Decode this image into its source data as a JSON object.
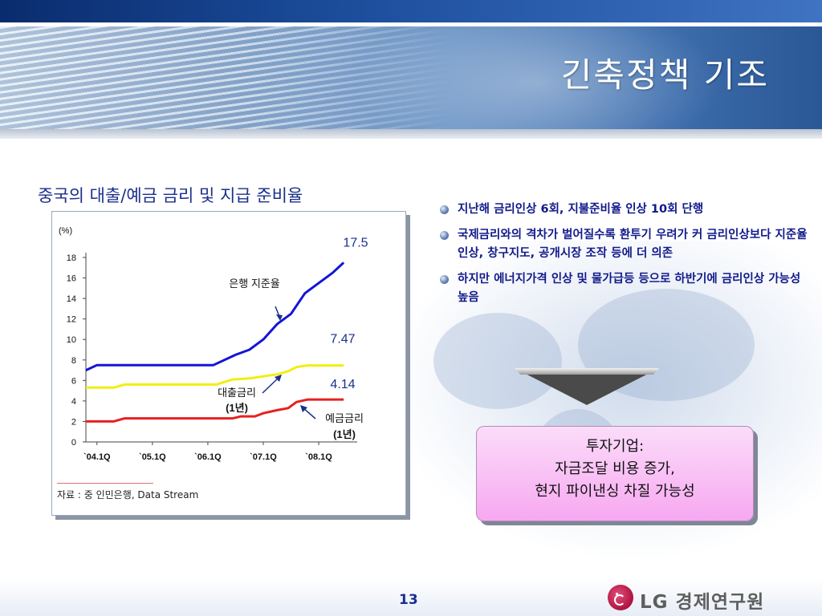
{
  "slide": {
    "title": "긴축정책 기조",
    "page_number": "13"
  },
  "chart_heading": "중국의 대출/예금 금리 및 지급 준비율",
  "chart_data": {
    "type": "line",
    "y_unit": "(%)",
    "ylim": [
      0,
      18
    ],
    "y_ticks": [
      0,
      2,
      4,
      6,
      8,
      10,
      12,
      14,
      16,
      18
    ],
    "x_tick_labels": [
      "`04.1Q",
      "`05.1Q",
      "`06.1Q",
      "`07.1Q",
      "`08.1Q"
    ],
    "x_tick_positions": [
      2004.0,
      2005.0,
      2006.0,
      2007.0,
      2008.0
    ],
    "xlim": [
      2003.8,
      2008.55
    ],
    "series": [
      {
        "key": "reserve",
        "color": "#1414d8",
        "x": [
          2003.8,
          2004.0,
          2004.3,
          2005.0,
          2005.5,
          2006.0,
          2006.1,
          2006.5,
          2006.75,
          2007.0,
          2007.25,
          2007.5,
          2007.75,
          2008.0,
          2008.25,
          2008.45
        ],
        "y": [
          7.0,
          7.5,
          7.5,
          7.5,
          7.5,
          7.5,
          7.5,
          8.5,
          9.0,
          10.0,
          11.5,
          12.5,
          14.5,
          15.5,
          16.5,
          17.5
        ]
      },
      {
        "key": "lending",
        "color": "#f2ee10",
        "x": [
          2003.8,
          2004.3,
          2004.5,
          2005.0,
          2006.0,
          2006.15,
          2006.45,
          2006.75,
          2007.0,
          2007.25,
          2007.45,
          2007.6,
          2007.8,
          2008.0,
          2008.45
        ],
        "y": [
          5.3,
          5.3,
          5.6,
          5.6,
          5.6,
          5.6,
          6.1,
          6.2,
          6.4,
          6.6,
          6.9,
          7.3,
          7.47,
          7.47,
          7.47
        ]
      },
      {
        "key": "deposit",
        "color": "#e82020",
        "x": [
          2003.8,
          2004.3,
          2004.5,
          2005.0,
          2006.0,
          2006.45,
          2006.6,
          2006.85,
          2007.0,
          2007.25,
          2007.45,
          2007.6,
          2007.8,
          2008.0,
          2008.45
        ],
        "y": [
          2.0,
          2.0,
          2.3,
          2.3,
          2.3,
          2.3,
          2.5,
          2.5,
          2.8,
          3.1,
          3.3,
          3.9,
          4.14,
          4.14,
          4.14
        ]
      }
    ],
    "end_labels": [
      "17.5",
      "7.47",
      "4.14"
    ],
    "annotations": {
      "reserve": "은행 지준율",
      "lending_1": "대출금리",
      "lending_2": "(1년)",
      "deposit_1": "예금금리",
      "deposit_2": "(1년)"
    },
    "grid": false,
    "legend": "none"
  },
  "source_text": "자료 : 중 인민은행, Data Stream",
  "bullets": [
    "지난해 금리인상 6회, 지불준비율 인상 10회 단행",
    "국제금리와의 격차가 벌어질수록 환투기 우려가 커 금리인상보다 지준율 인상, 창구지도, 공개시장 조작 등에 더 의존",
    "하지만 에너지가격 인상 및 물가급등 등으로 하반기에 금리인상 가능성 높음"
  ],
  "result_box": {
    "line1": "투자기업:",
    "line2": "자금조달 비용 증가,",
    "line3": "현지 파이낸싱 차질 가능성"
  },
  "logo": {
    "text": "LG 경제연구원",
    "color": "#b0123f"
  }
}
